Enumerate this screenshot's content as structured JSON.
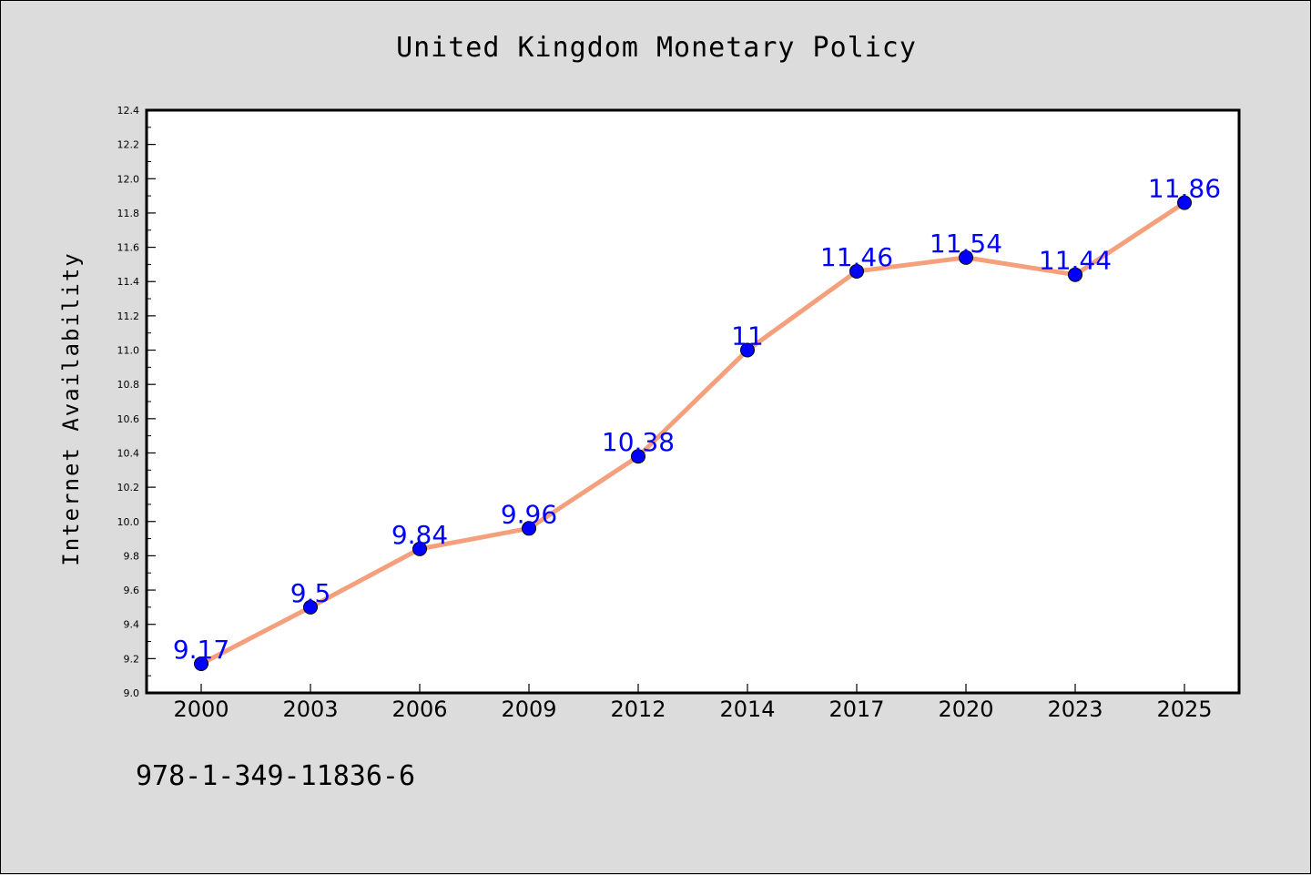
{
  "page": {
    "title": "United Kingdom Monetary Policy",
    "ylabel": "Internet Availability",
    "footer_text": "978-1-349-11836-6"
  },
  "colors": {
    "background": "#dcdcdc",
    "plot_background": "#ffffff",
    "line": "#f4a07c",
    "marker": "#0000ff",
    "data_label": "#0000ff",
    "axis": "#000000"
  },
  "chart_data": {
    "type": "line",
    "title": "United Kingdom Monetary Policy",
    "xlabel": "",
    "ylabel": "Internet Availability",
    "categories": [
      "2000",
      "2003",
      "2006",
      "2009",
      "2012",
      "2014",
      "2017",
      "2020",
      "2023",
      "2025"
    ],
    "series": [
      {
        "values": [
          9.17,
          9.5,
          9.84,
          9.96,
          10.38,
          11,
          11.46,
          11.54,
          11.44,
          11.86
        ],
        "data_labels": [
          "9.17",
          "9.5",
          "9.84",
          "9.96",
          "10.38",
          "11",
          "11.46",
          "11.54",
          "11.44",
          "11.86"
        ]
      }
    ],
    "ylim": [
      9.0,
      12.4
    ],
    "yticks": [
      "9.0",
      "9.2",
      "9.4",
      "9.6",
      "9.8",
      "10.0",
      "10.2",
      "10.4",
      "10.6",
      "10.8",
      "11.0",
      "11.2",
      "11.4",
      "11.6",
      "11.8",
      "12.0",
      "12.2",
      "12.4"
    ],
    "grid": false,
    "legend": "none",
    "marker": "circle"
  }
}
